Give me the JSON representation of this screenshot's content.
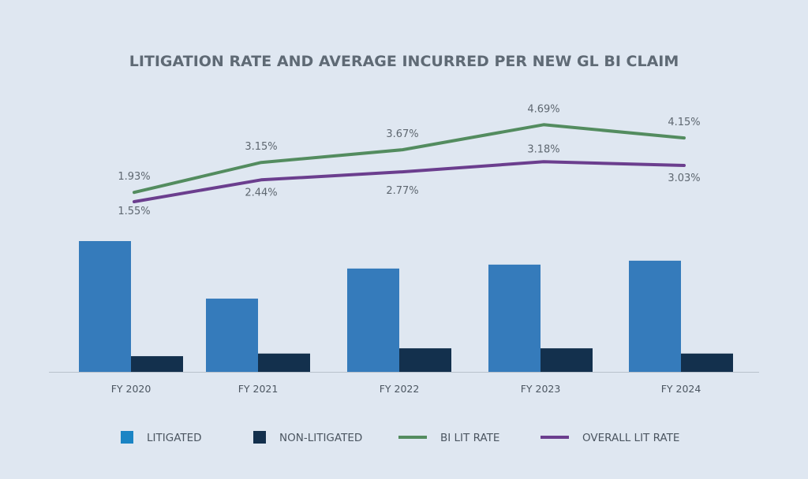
{
  "chart_data": {
    "type": "bar",
    "title": "LITIGATION RATE AND AVERAGE INCURRED PER NEW GL BI CLAIM",
    "categories": [
      "FY 2020",
      "FY 2021",
      "FY 2022",
      "FY 2023",
      "FY 2024"
    ],
    "bar_series": [
      {
        "name": "LITIGATED",
        "color": "#357bbb",
        "legend_color": "#1a84c4",
        "values": [
          100,
          56,
          79,
          82,
          85
        ]
      },
      {
        "name": "NON-LITIGATED",
        "color": "#13304d",
        "legend_color": "#13304d",
        "values": [
          12,
          14,
          18,
          18,
          14
        ]
      }
    ],
    "line_series": [
      {
        "name": "BI LIT RATE",
        "color": "#538c5f",
        "values": [
          1.93,
          3.15,
          3.67,
          4.69,
          4.15
        ],
        "labels": [
          "1.93%",
          "3.15%",
          "3.67%",
          "4.69%",
          "4.15%"
        ]
      },
      {
        "name": "OVERALL LIT RATE",
        "color": "#6b3e8e",
        "values": [
          1.55,
          2.44,
          2.77,
          3.18,
          3.03
        ],
        "labels": [
          "1.55%",
          "2.44%",
          "2.77%",
          "3.18%",
          "3.03%"
        ]
      }
    ],
    "bar_axis_visible": false,
    "line_axis_visible": false,
    "grid": false,
    "legend_position": "bottom"
  }
}
